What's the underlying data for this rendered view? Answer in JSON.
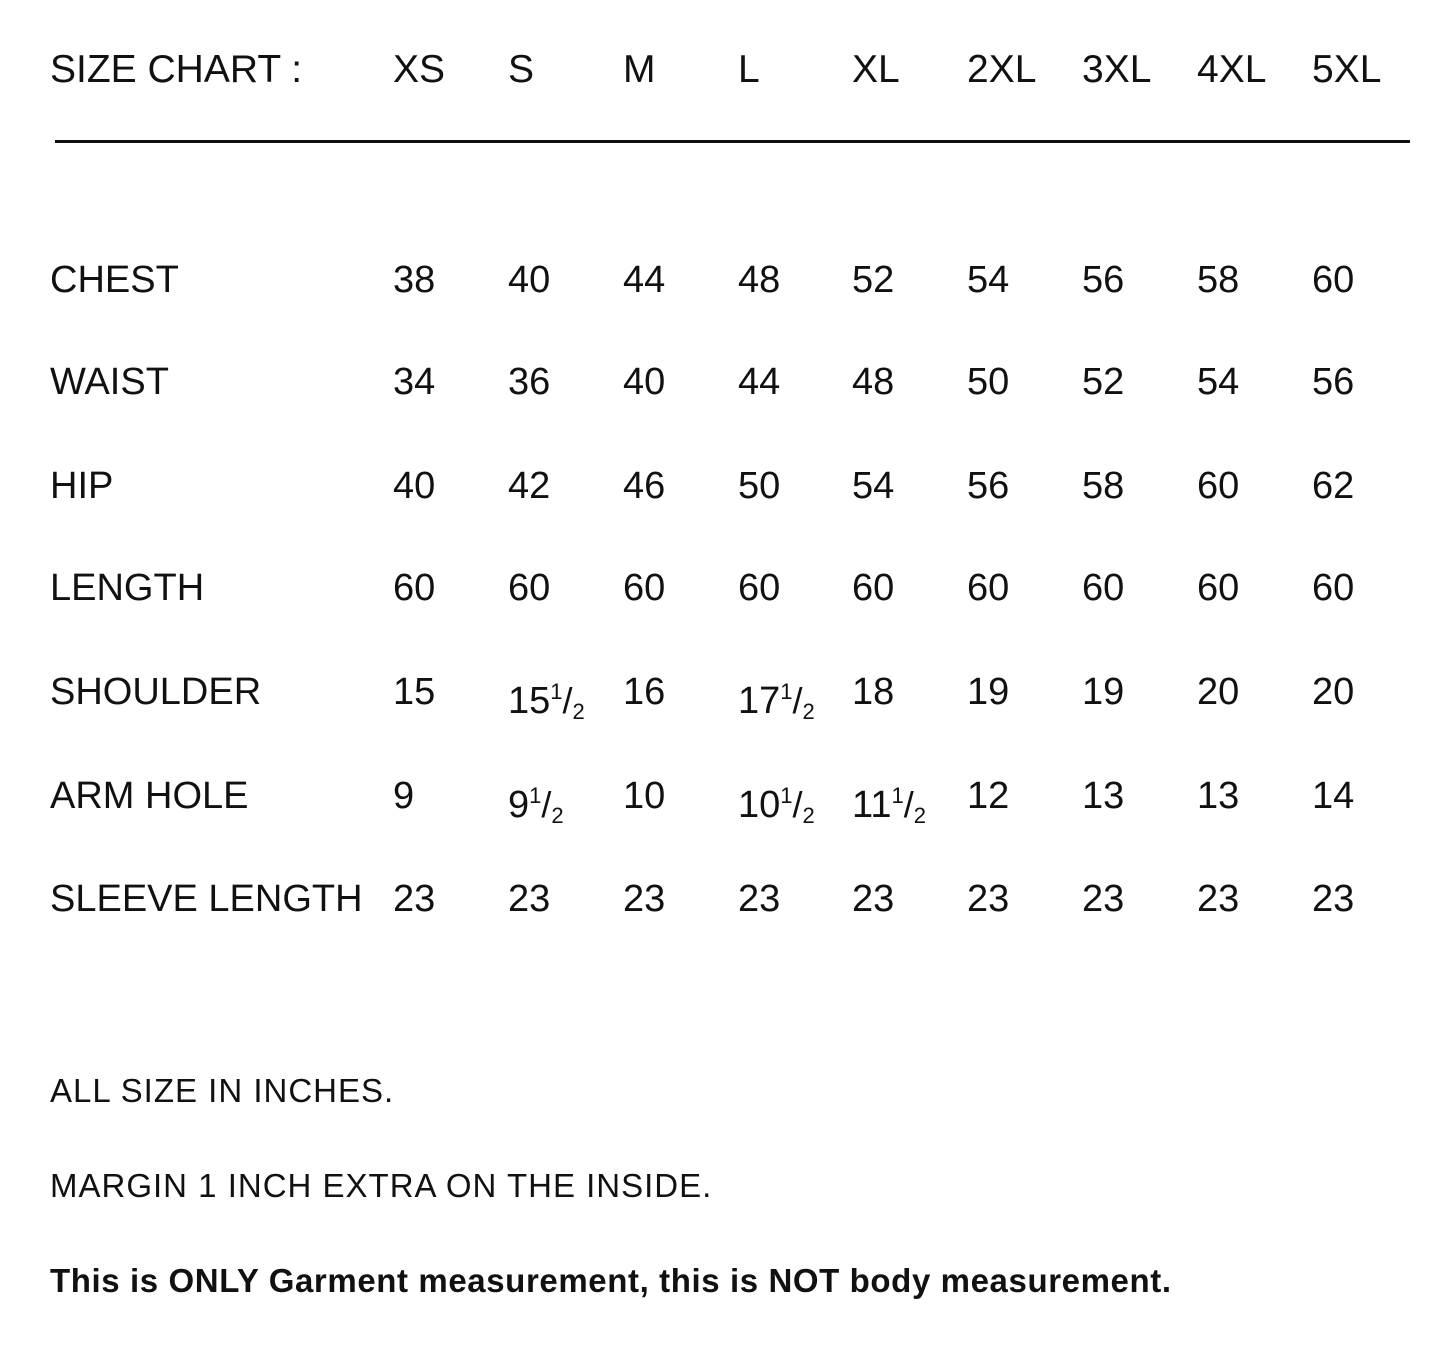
{
  "header": {
    "title": "SIZE CHART :",
    "sizes": [
      "XS",
      "S",
      "M",
      "L",
      "XL",
      "2XL",
      "3XL",
      "4XL",
      "5XL"
    ]
  },
  "rows": [
    {
      "label": "CHEST",
      "values": [
        "38",
        "40",
        "44",
        "48",
        "52",
        "54",
        "56",
        "58",
        "60"
      ]
    },
    {
      "label": "WAIST",
      "values": [
        "34",
        "36",
        "40",
        "44",
        "48",
        "50",
        "52",
        "54",
        "56"
      ]
    },
    {
      "label": "HIP",
      "values": [
        "40",
        "42",
        "46",
        "50",
        "54",
        "56",
        "58",
        "60",
        "62"
      ]
    },
    {
      "label": "LENGTH",
      "values": [
        "60",
        "60",
        "60",
        "60",
        "60",
        "60",
        "60",
        "60",
        "60"
      ]
    },
    {
      "label": "SHOULDER",
      "values": [
        "15",
        "15 1/2",
        "16",
        "17 1/2",
        "18",
        "19",
        "19",
        "20",
        "20"
      ]
    },
    {
      "label": "ARM HOLE",
      "values": [
        "9",
        "9 1/2",
        "10",
        "10 1/2",
        "11 1/2",
        "12",
        "13",
        "13",
        "14"
      ]
    },
    {
      "label": "SLEEVE LENGTH",
      "values": [
        "23",
        "23",
        "23",
        "23",
        "23",
        "23",
        "23",
        "23",
        "23"
      ]
    }
  ],
  "notes": {
    "units": "ALL SIZE IN INCHES.",
    "margin": "MARGIN 1 INCH EXTRA ON THE INSIDE.",
    "disclaimer": "This is ONLY Garment measurement, this is NOT body measurement."
  }
}
